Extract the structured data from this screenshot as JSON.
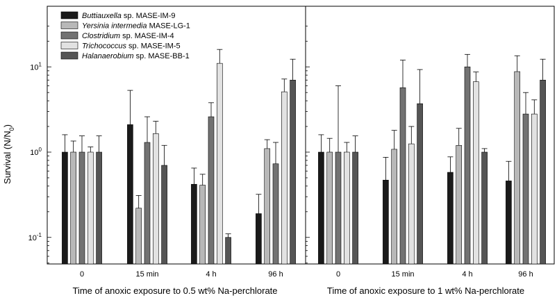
{
  "figure": {
    "ylabel_main": "Survival (N/N",
    "ylabel_sub": "0",
    "ylabel_close": ")"
  },
  "legend": [
    {
      "italic": "Buttiauxella",
      "rest": " sp. MASE-IM-9",
      "color": "#1a1a1a"
    },
    {
      "italic": "Yersinia intermedia",
      "rest": " MASE-LG-1",
      "color": "#b8b8b8"
    },
    {
      "italic": "Clostridium",
      "rest": " sp. MASE-IM-4",
      "color": "#727272"
    },
    {
      "italic": "Trichococcus",
      "rest": " sp. MASE-IM-5",
      "color": "#e2e2e2"
    },
    {
      "italic": "Halanaerobium",
      "rest": " sp. MASE-BB-1",
      "color": "#555555"
    }
  ],
  "chart_data": [
    {
      "type": "bar",
      "xlabel": "Time of anoxic exposure to 0.5 wt% Na-perchlorate",
      "ylabel": "Survival (N/N0)",
      "yscale": "log",
      "ylim": [
        0.05,
        30
      ],
      "yticks": [
        {
          "value": 0.1,
          "base": "10",
          "exp": "-1"
        },
        {
          "value": 1,
          "base": "10",
          "exp": "0"
        },
        {
          "value": 10,
          "base": "10",
          "exp": "1"
        }
      ],
      "categories": [
        "0",
        "15 min",
        "4 h",
        "96 h"
      ],
      "series": [
        {
          "name": "Buttiauxella sp. MASE-IM-9",
          "values": [
            1.0,
            2.1,
            0.42,
            0.19
          ],
          "errors_upper": [
            1.6,
            5.3,
            0.65,
            0.32
          ]
        },
        {
          "name": "Yersinia intermedia MASE-LG-1",
          "values": [
            1.0,
            0.22,
            0.41,
            1.1
          ],
          "errors_upper": [
            1.35,
            0.31,
            0.55,
            1.4
          ]
        },
        {
          "name": "Clostridium sp. MASE-IM-4",
          "values": [
            1.0,
            1.3,
            2.6,
            0.73
          ],
          "errors_upper": [
            1.55,
            2.6,
            3.8,
            1.3
          ]
        },
        {
          "name": "Trichococcus sp. MASE-IM-5",
          "values": [
            1.0,
            1.65,
            11.0,
            5.1
          ],
          "errors_upper": [
            1.15,
            2.3,
            16.0,
            7.2
          ]
        },
        {
          "name": "Halanaerobium sp. MASE-BB-1",
          "values": [
            1.0,
            0.7,
            0.1,
            7.0
          ],
          "errors_upper": [
            1.55,
            1.2,
            0.11,
            12.3
          ]
        }
      ]
    },
    {
      "type": "bar",
      "xlabel": "Time of anoxic exposure to 1 wt% Na-perchlorate",
      "yscale": "log",
      "ylim": [
        0.05,
        30
      ],
      "categories": [
        "0",
        "15 min",
        "4 h",
        "96 h"
      ],
      "series": [
        {
          "name": "Buttiauxella sp. MASE-IM-9",
          "values": [
            1.0,
            0.47,
            0.58,
            0.46
          ],
          "errors_upper": [
            1.6,
            0.87,
            0.88,
            0.78
          ]
        },
        {
          "name": "Yersinia intermedia MASE-LG-1",
          "values": [
            1.0,
            1.08,
            1.2,
            8.8
          ],
          "errors_upper": [
            1.45,
            1.8,
            1.9,
            13.5
          ]
        },
        {
          "name": "Clostridium sp. MASE-IM-4",
          "values": [
            1.0,
            5.7,
            10.0,
            2.8
          ],
          "errors_upper": [
            6.0,
            12.0,
            14.0,
            5.0
          ]
        },
        {
          "name": "Trichococcus sp. MASE-IM-5",
          "values": [
            1.0,
            1.25,
            6.7,
            2.8
          ],
          "errors_upper": [
            1.3,
            2.0,
            8.7,
            4.1
          ]
        },
        {
          "name": "Halanaerobium sp. MASE-BB-1",
          "values": [
            1.0,
            3.7,
            1.0,
            7.0
          ],
          "errors_upper": [
            1.55,
            9.3,
            1.1,
            12.3
          ]
        }
      ]
    }
  ]
}
